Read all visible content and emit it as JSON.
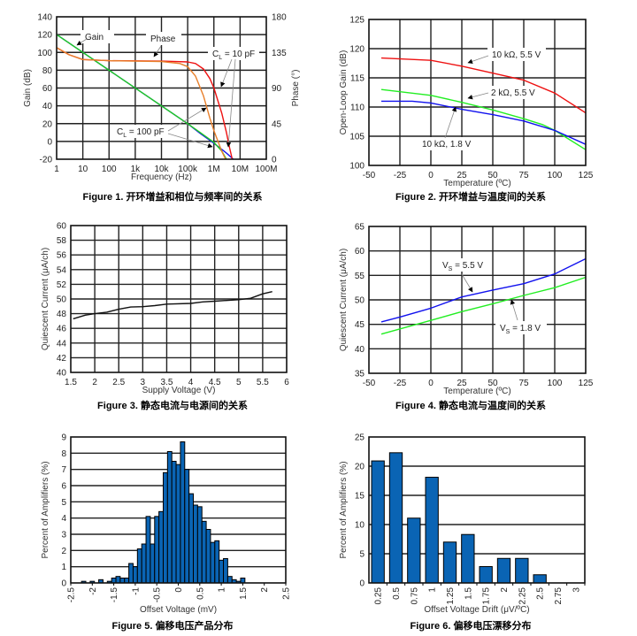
{
  "chart_data": [
    {
      "type": "line",
      "caption": "Figure 1. 开环增益和相位与频率间的关系",
      "xlabel": "Frequency (Hz)",
      "ylabel": "Gain (dB)",
      "y2label": "Phase (°)",
      "xscale": "log",
      "xlim": [
        1,
        100000000
      ],
      "ylim": [
        -20,
        140
      ],
      "y2lim": [
        0,
        180
      ],
      "xticks": [
        {
          "v": 1,
          "label": "1"
        },
        {
          "v": 10,
          "label": "10"
        },
        {
          "v": 100,
          "label": "100"
        },
        {
          "v": 1000,
          "label": "1k"
        },
        {
          "v": 10000,
          "label": "10k"
        },
        {
          "v": 100000,
          "label": "100k"
        },
        {
          "v": 1000000,
          "label": "1M"
        },
        {
          "v": 10000000,
          "label": "10M"
        },
        {
          "v": 100000000,
          "label": "100M"
        }
      ],
      "yticks": [
        "-20",
        "0",
        "20",
        "40",
        "60",
        "80",
        "100",
        "120",
        "140"
      ],
      "y2ticks": [
        "0",
        "45",
        "90",
        "135",
        "180"
      ],
      "grid": true,
      "series": [
        {
          "name": "Gain, CL = 10 pF",
          "axis": "y",
          "color": "#1010ee",
          "points": [
            [
              1,
              120
            ],
            [
              100000,
              20
            ],
            [
              300000,
              9
            ],
            [
              1000000,
              -2
            ],
            [
              3000000,
              -13
            ],
            [
              5500000,
              -20
            ]
          ]
        },
        {
          "name": "Gain, CL = 100 pF",
          "axis": "y",
          "color": "#22cc22",
          "points": [
            [
              1,
              120
            ],
            [
              100000,
              20
            ],
            [
              300000,
              10
            ],
            [
              1000000,
              -1
            ],
            [
              2000000,
              -11
            ],
            [
              3000000,
              -20
            ]
          ]
        },
        {
          "name": "Phase, CL = 10 pF",
          "axis": "y2",
          "color": "#ee1111",
          "points": [
            [
              1,
              141
            ],
            [
              3,
              132
            ],
            [
              10,
              126
            ],
            [
              100,
              124.5
            ],
            [
              10000,
              124
            ],
            [
              100000,
              123
            ],
            [
              200000,
              121
            ],
            [
              400000,
              114
            ],
            [
              700000,
              102
            ],
            [
              1000000,
              90
            ],
            [
              2000000,
              58
            ],
            [
              3000000,
              34
            ],
            [
              4000000,
              14
            ],
            [
              5000000,
              0
            ]
          ]
        },
        {
          "name": "Phase, CL = 100 pF",
          "axis": "y2",
          "color": "#e87f2a",
          "points": [
            [
              1,
              141
            ],
            [
              3,
              132
            ],
            [
              10,
              126
            ],
            [
              100,
              124.5
            ],
            [
              10000,
              123.5
            ],
            [
              50000,
              121
            ],
            [
              100000,
              117
            ],
            [
              200000,
              105
            ],
            [
              400000,
              80
            ],
            [
              700000,
              52
            ],
            [
              1000000,
              36
            ],
            [
              2000000,
              10
            ],
            [
              2800000,
              0
            ]
          ]
        }
      ],
      "annotations": [
        {
          "text": "Gain"
        },
        {
          "text": "Phase"
        },
        {
          "text": "C",
          "sub": "L",
          "rest": " = 10 pF"
        },
        {
          "text": "C",
          "sub": "L",
          "rest": " = 100 pF"
        }
      ]
    },
    {
      "type": "line",
      "caption": "Figure 2. 开环增益与温度间的关系",
      "xlabel": "Temperature (ºC)",
      "ylabel": "Open-Loop Gain (dB)",
      "xlim": [
        -50,
        125
      ],
      "ylim": [
        100,
        125
      ],
      "xticks": [
        {
          "v": -50,
          "label": "-50"
        },
        {
          "v": -25,
          "label": "-25"
        },
        {
          "v": 0,
          "label": "0"
        },
        {
          "v": 25,
          "label": "25"
        },
        {
          "v": 50,
          "label": "50"
        },
        {
          "v": 75,
          "label": "75"
        },
        {
          "v": 100,
          "label": "100"
        },
        {
          "v": 125,
          "label": "125"
        }
      ],
      "yticks": [
        "100",
        "105",
        "110",
        "115",
        "120",
        "125"
      ],
      "grid": true,
      "series": [
        {
          "name": "10 kΩ, 5.5 V",
          "color": "#ee1111",
          "points": [
            [
              -40,
              118.4
            ],
            [
              0,
              118
            ],
            [
              25,
              117
            ],
            [
              50,
              115.8
            ],
            [
              75,
              114.6
            ],
            [
              100,
              112.4
            ],
            [
              125,
              109
            ]
          ]
        },
        {
          "name": "2 kΩ, 5.5 V",
          "color": "#22ee22",
          "points": [
            [
              -40,
              113
            ],
            [
              0,
              112
            ],
            [
              25,
              110.8
            ],
            [
              50,
              109.5
            ],
            [
              75,
              108
            ],
            [
              90,
              107
            ],
            [
              100,
              106
            ],
            [
              125,
              102.7
            ]
          ]
        },
        {
          "name": "10 kΩ, 1.8 V",
          "color": "#1111ee",
          "points": [
            [
              -40,
              111
            ],
            [
              -15,
              111
            ],
            [
              0,
              110.7
            ],
            [
              25,
              109.6
            ],
            [
              50,
              108.7
            ],
            [
              75,
              107.6
            ],
            [
              100,
              106
            ],
            [
              125,
              103.6
            ]
          ]
        }
      ],
      "annotations": [
        {
          "text": "10 kΩ, 5.5 V"
        },
        {
          "text": "2 kΩ, 5.5 V"
        },
        {
          "text": "10 kΩ, 1.8 V"
        }
      ]
    },
    {
      "type": "line",
      "caption": "Figure 3. 静态电流与电源间的关系",
      "xlabel": "Supply Voltage (V)",
      "ylabel": "Quiescent Current (μA/ch)",
      "xlim": [
        1.5,
        6
      ],
      "ylim": [
        40,
        60
      ],
      "xticks": [
        {
          "v": 1.5,
          "label": "1.5"
        },
        {
          "v": 2,
          "label": "2"
        },
        {
          "v": 2.5,
          "label": "2.5"
        },
        {
          "v": 3,
          "label": "3"
        },
        {
          "v": 3.5,
          "label": "3.5"
        },
        {
          "v": 4,
          "label": "4"
        },
        {
          "v": 4.5,
          "label": "4.5"
        },
        {
          "v": 5,
          "label": "5"
        },
        {
          "v": 5.5,
          "label": "5.5"
        },
        {
          "v": 6,
          "label": "6"
        }
      ],
      "yticks": [
        "40",
        "42",
        "44",
        "46",
        "48",
        "50",
        "52",
        "54",
        "56",
        "58",
        "60"
      ],
      "grid": true,
      "series": [
        {
          "name": "Quiescent Current",
          "color": "#111111",
          "points": [
            [
              1.55,
              47.3
            ],
            [
              1.8,
              47.8
            ],
            [
              2,
              48
            ],
            [
              2.25,
              48.2
            ],
            [
              2.5,
              48.6
            ],
            [
              2.75,
              48.9
            ],
            [
              3,
              48.95
            ],
            [
              3.25,
              49.1
            ],
            [
              3.5,
              49.3
            ],
            [
              4,
              49.4
            ],
            [
              4.25,
              49.6
            ],
            [
              4.5,
              49.7
            ],
            [
              5,
              49.9
            ],
            [
              5.25,
              50.1
            ],
            [
              5.5,
              50.7
            ],
            [
              5.7,
              51
            ]
          ]
        }
      ]
    },
    {
      "type": "line",
      "caption": "Figure 4. 静态电流与温度间的关系",
      "xlabel": "Temperature (ºC)",
      "ylabel": "Quiescent Current (μA/ch)",
      "xlim": [
        -50,
        125
      ],
      "ylim": [
        35,
        65
      ],
      "xticks": [
        {
          "v": -50,
          "label": "-50"
        },
        {
          "v": -25,
          "label": "-25"
        },
        {
          "v": 0,
          "label": "0"
        },
        {
          "v": 25,
          "label": "25"
        },
        {
          "v": 50,
          "label": "50"
        },
        {
          "v": 75,
          "label": "75"
        },
        {
          "v": 100,
          "label": "100"
        },
        {
          "v": 125,
          "label": "125"
        }
      ],
      "yticks": [
        "35",
        "40",
        "45",
        "50",
        "55",
        "60",
        "65"
      ],
      "grid": true,
      "series": [
        {
          "name": "VS = 5.5 V",
          "color": "#1111ee",
          "points": [
            [
              -40,
              45.5
            ],
            [
              -25,
              46.5
            ],
            [
              0,
              48.3
            ],
            [
              25,
              50.6
            ],
            [
              50,
              52
            ],
            [
              75,
              53.3
            ],
            [
              100,
              55.3
            ],
            [
              125,
              58.4
            ]
          ]
        },
        {
          "name": "VS = 1.8 V",
          "color": "#22ee22",
          "points": [
            [
              -40,
              43
            ],
            [
              0,
              45.8
            ],
            [
              25,
              47.6
            ],
            [
              50,
              49.2
            ],
            [
              75,
              50.9
            ],
            [
              100,
              52.5
            ],
            [
              125,
              54.6
            ]
          ]
        }
      ],
      "annotations": [
        {
          "text": "V",
          "sub": "S",
          "rest": " = 5.5 V"
        },
        {
          "text": "V",
          "sub": "S",
          "rest": " = 1.8 V"
        }
      ]
    },
    {
      "type": "bar",
      "caption": "Figure 5. 偏移电压产品分布",
      "xlabel": "Offset Voltage (mV)",
      "ylabel": "Percent of Amplifiers (%)",
      "xlim": [
        -2.5,
        2.5
      ],
      "ylim": [
        0,
        9
      ],
      "bin_width": 0.1,
      "xticks": [
        {
          "v": -2.5,
          "label": "-2.5"
        },
        {
          "v": -2,
          "label": "-2"
        },
        {
          "v": -1.5,
          "label": "-1.5"
        },
        {
          "v": -1,
          "label": "-1"
        },
        {
          "v": -0.5,
          "label": "-0.5"
        },
        {
          "v": 0,
          "label": "0"
        },
        {
          "v": 0.5,
          "label": "0.5"
        },
        {
          "v": 1,
          "label": "1"
        },
        {
          "v": 1.5,
          "label": "1.5"
        },
        {
          "v": 2,
          "label": "2"
        },
        {
          "v": 2.5,
          "label": "2.5"
        }
      ],
      "yticks": [
        "0",
        "1",
        "2",
        "3",
        "4",
        "5",
        "6",
        "7",
        "8",
        "9"
      ],
      "bar_color": "#0a64b4",
      "x": [
        -2.2,
        -2.0,
        -1.8,
        -1.6,
        -1.5,
        -1.4,
        -1.3,
        -1.2,
        -1.1,
        -1.0,
        -0.9,
        -0.8,
        -0.7,
        -0.6,
        -0.5,
        -0.4,
        -0.3,
        -0.2,
        -0.1,
        0.0,
        0.1,
        0.2,
        0.3,
        0.4,
        0.5,
        0.6,
        0.7,
        0.8,
        0.9,
        1.0,
        1.1,
        1.2,
        1.3,
        1.4,
        1.5
      ],
      "values": [
        0.1,
        0.1,
        0.2,
        0.1,
        0.3,
        0.4,
        0.3,
        0.3,
        1.2,
        1.0,
        2.1,
        2.4,
        4.1,
        2.4,
        4.1,
        4.4,
        6.8,
        8.1,
        7.5,
        7.3,
        8.7,
        7.0,
        5.5,
        4.8,
        4.7,
        3.8,
        3.3,
        2.5,
        2.6,
        1.4,
        1.5,
        0.4,
        0.2,
        0.1,
        0.3
      ]
    },
    {
      "type": "bar",
      "caption": "Figure 6. 偏移电压漂移分布",
      "xlabel": "Offset Voltage Drift (μV/ºC)",
      "ylabel": "Percent of Amplifiers (%)",
      "ylim": [
        0,
        25
      ],
      "yticks": [
        "0",
        "5",
        "10",
        "15",
        "20",
        "25"
      ],
      "bar_color": "#0a64b4",
      "categories": [
        "0.25",
        "0.5",
        "0.75",
        "1",
        "1.25",
        "1.5",
        "1.75",
        "2",
        "2.25",
        "2.5",
        "2.75",
        "3"
      ],
      "values": [
        20.9,
        22.3,
        11.1,
        18.1,
        7.0,
        8.3,
        2.8,
        4.2,
        4.2,
        1.4,
        0,
        0
      ]
    }
  ]
}
